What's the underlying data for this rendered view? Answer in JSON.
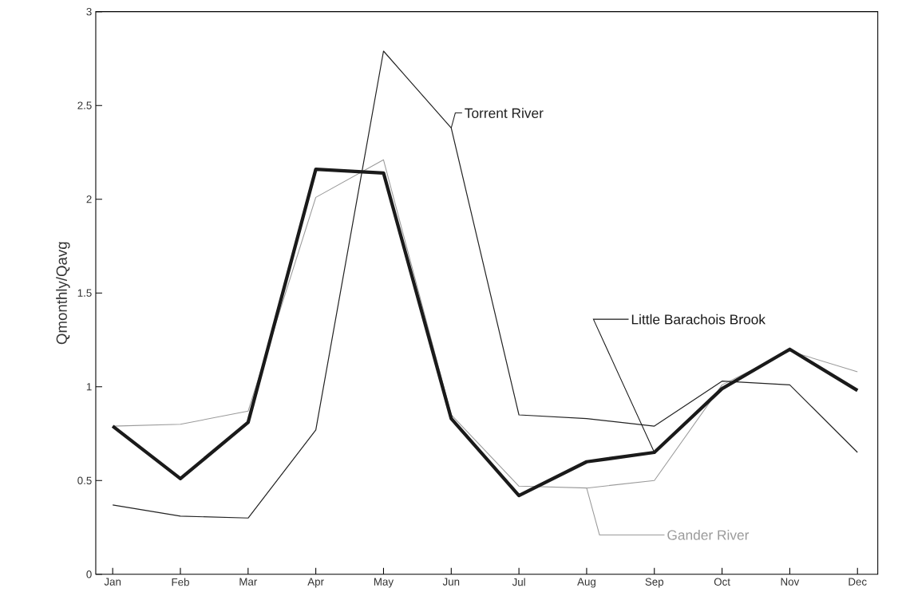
{
  "chart_data": {
    "type": "line",
    "ylabel": "Qmonthly/Qavg",
    "categories": [
      "Jan",
      "Feb",
      "Mar",
      "Apr",
      "May",
      "Jun",
      "Jul",
      "Aug",
      "Sep",
      "Oct",
      "Nov",
      "Dec"
    ],
    "series": [
      {
        "name": "Torrent River",
        "color": "#222222",
        "values": [
          0.37,
          0.31,
          0.3,
          0.77,
          2.79,
          2.38,
          0.85,
          0.83,
          0.79,
          1.03,
          1.01,
          0.65
        ]
      },
      {
        "name": "Little Barachois Brook",
        "color": "#1a1a1a",
        "values": [
          0.79,
          0.51,
          0.81,
          2.16,
          2.14,
          0.83,
          0.42,
          0.6,
          0.65,
          0.99,
          1.2,
          0.98
        ]
      },
      {
        "name": "Gander River",
        "color": "#9a9a9a",
        "values": [
          0.79,
          0.8,
          0.87,
          2.01,
          2.21,
          0.85,
          0.47,
          0.46,
          0.5,
          1.01,
          1.19,
          1.08
        ]
      }
    ],
    "ylim": [
      0,
      3
    ],
    "yticks": [
      0,
      0.5,
      1,
      1.5,
      2,
      2.5,
      3
    ],
    "line_style": "solid"
  }
}
